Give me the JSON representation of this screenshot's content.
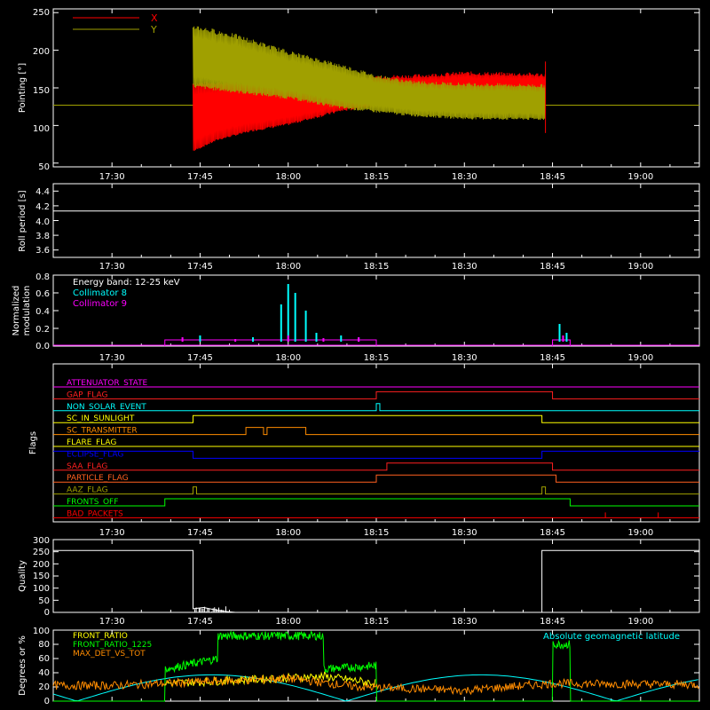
{
  "chart_data": [
    {
      "type": "line",
      "ylabel": "Pointing [°]",
      "yticks": [
        "50",
        "100",
        "150",
        "200",
        "250"
      ],
      "ylim": [
        45,
        255
      ],
      "legend": [
        {
          "name": "X",
          "color": "#ff0000"
        },
        {
          "name": "Y",
          "color": "#a0a000"
        }
      ],
      "baseline": 127,
      "series": [
        {
          "name": "X",
          "color": "#ff0000",
          "upper": [
            [
              17.73,
              158
            ],
            [
              17.85,
              160
            ],
            [
              18.0,
              160
            ],
            [
              18.15,
              162
            ],
            [
              18.25,
              167
            ],
            [
              18.35,
              168
            ],
            [
              18.5,
              172
            ],
            [
              18.73,
              170
            ]
          ],
          "lower": [
            [
              17.73,
              65
            ],
            [
              17.8,
              80
            ],
            [
              17.9,
              92
            ],
            [
              18.0,
              100
            ],
            [
              18.15,
              118
            ],
            [
              18.25,
              125
            ],
            [
              18.35,
              130
            ],
            [
              18.5,
              133
            ],
            [
              18.73,
              133
            ]
          ]
        },
        {
          "name": "Y",
          "color": "#a0a000",
          "upper": [
            [
              17.73,
              235
            ],
            [
              17.85,
              222
            ],
            [
              18.0,
              200
            ],
            [
              18.15,
              182
            ],
            [
              18.25,
              168
            ],
            [
              18.35,
              160
            ],
            [
              18.5,
              157
            ],
            [
              18.73,
              155
            ]
          ],
          "lower": [
            [
              17.73,
              150
            ],
            [
              17.85,
              143
            ],
            [
              18.0,
              135
            ],
            [
              18.15,
              122
            ],
            [
              18.25,
              117
            ],
            [
              18.35,
              112
            ],
            [
              18.5,
              108
            ],
            [
              18.73,
              107
            ]
          ]
        }
      ],
      "spikes": [
        {
          "x": 18.73,
          "low": 90,
          "high": 185,
          "color": "#ff0000"
        }
      ]
    },
    {
      "type": "line",
      "ylabel": "Roll period [s]",
      "yticks": [
        "3.6",
        "3.8",
        "4.0",
        "4.2",
        "4.4"
      ],
      "ylim": [
        3.5,
        4.5
      ],
      "series": [
        {
          "name": "",
          "color": "#ffffff",
          "points": [
            [
              17.0,
              4.13
            ],
            [
              19.5,
              4.13
            ]
          ]
        }
      ]
    },
    {
      "type": "line",
      "ylabel": "Normalized modulation",
      "yticks": [
        "0.0",
        "0.2",
        "0.4",
        "0.6",
        "0.8"
      ],
      "ylim": [
        0,
        0.8
      ],
      "annotations": [
        "Energy band: 12-25 keV",
        "Collimator 8",
        "Collimator 9"
      ],
      "baseline_series": {
        "color": "#ff00ff",
        "from": 17.65,
        "to": 18.25,
        "level": 0.07
      },
      "baseline_series_2": {
        "color": "#ff00ff",
        "from": 18.75,
        "to": 18.8,
        "level": 0.07
      },
      "series": [
        {
          "name": "Collimator 8",
          "color": "#00ffff",
          "spikes": [
            [
              17.75,
              0.12
            ],
            [
              17.9,
              0.1
            ],
            [
              17.98,
              0.47
            ],
            [
              18.0,
              0.7
            ],
            [
              18.02,
              0.6
            ],
            [
              18.05,
              0.4
            ],
            [
              18.08,
              0.15
            ],
            [
              18.15,
              0.12
            ],
            [
              18.2,
              0.1
            ],
            [
              18.77,
              0.25
            ],
            [
              18.79,
              0.15
            ]
          ]
        },
        {
          "name": "Collimator 9",
          "color": "#ff00ff",
          "spikes": [
            [
              17.7,
              0.1
            ],
            [
              17.85,
              0.08
            ],
            [
              18.0,
              0.12
            ],
            [
              18.1,
              0.09
            ],
            [
              18.2,
              0.1
            ],
            [
              18.78,
              0.12
            ]
          ]
        }
      ]
    },
    {
      "type": "line",
      "ylabel": "Flags",
      "flags": [
        {
          "name": "ATTENUATOR_STATE",
          "color": "#ff00ff",
          "steps": [
            [
              17.0,
              0
            ],
            [
              19.5,
              0
            ]
          ]
        },
        {
          "name": "GAP_FLAG",
          "color": "#ff2020",
          "steps": [
            [
              17.0,
              0
            ],
            [
              18.25,
              1
            ],
            [
              18.75,
              0
            ]
          ]
        },
        {
          "name": "NON_SOLAR_EVENT",
          "color": "#00ffff",
          "steps": [
            [
              17.0,
              0
            ],
            [
              18.25,
              1
            ],
            [
              18.26,
              0
            ]
          ]
        },
        {
          "name": "SC_IN_SUNLIGHT",
          "color": "#ffff00",
          "steps": [
            [
              17.0,
              0
            ],
            [
              17.73,
              1
            ],
            [
              18.72,
              0
            ]
          ]
        },
        {
          "name": "SC_TRANSMITTER",
          "color": "#ff8c00",
          "steps": [
            [
              17.0,
              0
            ],
            [
              17.88,
              1
            ],
            [
              17.93,
              0
            ],
            [
              17.94,
              1
            ],
            [
              18.05,
              0
            ]
          ]
        },
        {
          "name": "FLARE_FLAG",
          "color": "#ffff00",
          "steps": [
            [
              17.0,
              0
            ],
            [
              19.5,
              0
            ]
          ]
        },
        {
          "name": "ECLIPSE_FLAG",
          "color": "#0000ff",
          "steps": [
            [
              17.0,
              1
            ],
            [
              17.73,
              0
            ],
            [
              18.72,
              1
            ]
          ]
        },
        {
          "name": "SAA_FLAG",
          "color": "#ff2020",
          "steps": [
            [
              17.0,
              0
            ],
            [
              18.28,
              1
            ],
            [
              18.75,
              0
            ]
          ]
        },
        {
          "name": "PARTICLE_FLAG",
          "color": "#ff6020",
          "steps": [
            [
              17.0,
              0
            ],
            [
              18.25,
              1
            ],
            [
              18.76,
              0
            ]
          ]
        },
        {
          "name": "AAZ_FLAG",
          "color": "#a0a000",
          "steps": [
            [
              17.0,
              0
            ],
            [
              17.73,
              1
            ],
            [
              17.74,
              0
            ],
            [
              18.72,
              1
            ],
            [
              18.73,
              0
            ]
          ]
        },
        {
          "name": "FRONTS_OFF",
          "color": "#00ff00",
          "steps": [
            [
              17.0,
              0
            ],
            [
              17.65,
              1
            ],
            [
              18.8,
              0
            ]
          ]
        },
        {
          "name": "BAD_PACKETS",
          "color": "#ff0000",
          "steps": [
            [
              17.0,
              0
            ],
            [
              19.5,
              0
            ]
          ],
          "ticks": [
            18.9,
            19.05
          ]
        }
      ]
    },
    {
      "type": "line",
      "ylabel": "Quality",
      "yticks": [
        "0",
        "50",
        "100",
        "150",
        "200",
        "250",
        "300"
      ],
      "ylim": [
        0,
        300
      ],
      "series": [
        {
          "name": "",
          "color": "#ffffff",
          "points": [
            [
              17.0,
              255
            ],
            [
              17.73,
              255
            ],
            [
              17.73,
              15
            ],
            [
              17.76,
              20
            ],
            [
              17.8,
              8
            ],
            [
              17.83,
              3
            ],
            [
              17.85,
              0
            ],
            [
              18.72,
              0
            ],
            [
              18.72,
              255
            ],
            [
              19.5,
              255
            ]
          ]
        }
      ]
    },
    {
      "type": "line",
      "ylabel": "Degrees or %",
      "yticks": [
        "0",
        "20",
        "40",
        "60",
        "80",
        "100"
      ],
      "ylim": [
        0,
        100
      ],
      "legend": [
        {
          "name": "FRONT_RATIO",
          "color": "#ffff00"
        },
        {
          "name": "FRONT_RATIO_1225",
          "color": "#00ff00"
        },
        {
          "name": "MAX_DET_VS_TOT",
          "color": "#ff8c00"
        }
      ],
      "annotations": [
        "Absolute geomagnetic latitude"
      ],
      "latitude_color": "#00ffff",
      "series": [
        {
          "name": "FRONT_RATIO_1225",
          "color": "#00ff00",
          "points": [
            [
              17.0,
              0
            ],
            [
              17.65,
              0
            ],
            [
              17.65,
              45
            ],
            [
              17.8,
              60
            ],
            [
              17.8,
              92
            ],
            [
              18.1,
              92
            ],
            [
              18.1,
              45
            ],
            [
              18.25,
              50
            ],
            [
              18.25,
              0
            ],
            [
              18.75,
              0
            ],
            [
              18.75,
              80
            ],
            [
              18.8,
              80
            ],
            [
              18.8,
              0
            ],
            [
              19.5,
              0
            ]
          ]
        },
        {
          "name": "FRONT_RATIO",
          "color": "#ffff00",
          "points": [
            [
              17.65,
              25
            ],
            [
              18.1,
              35
            ],
            [
              18.25,
              25
            ]
          ]
        },
        {
          "name": "MAX_DET_VS_TOT",
          "color": "#ff8c00",
          "points": [
            [
              17.0,
              22
            ],
            [
              17.5,
              22
            ],
            [
              17.8,
              28
            ],
            [
              18.0,
              32
            ],
            [
              18.2,
              20
            ],
            [
              18.5,
              15
            ],
            [
              18.75,
              25
            ],
            [
              19.5,
              22
            ]
          ]
        }
      ]
    }
  ],
  "xaxis": {
    "ticks": [
      "17:30",
      "17:45",
      "18:00",
      "18:15",
      "18:30",
      "18:45",
      "19:00"
    ],
    "range": [
      "17:20",
      "19:10"
    ]
  }
}
